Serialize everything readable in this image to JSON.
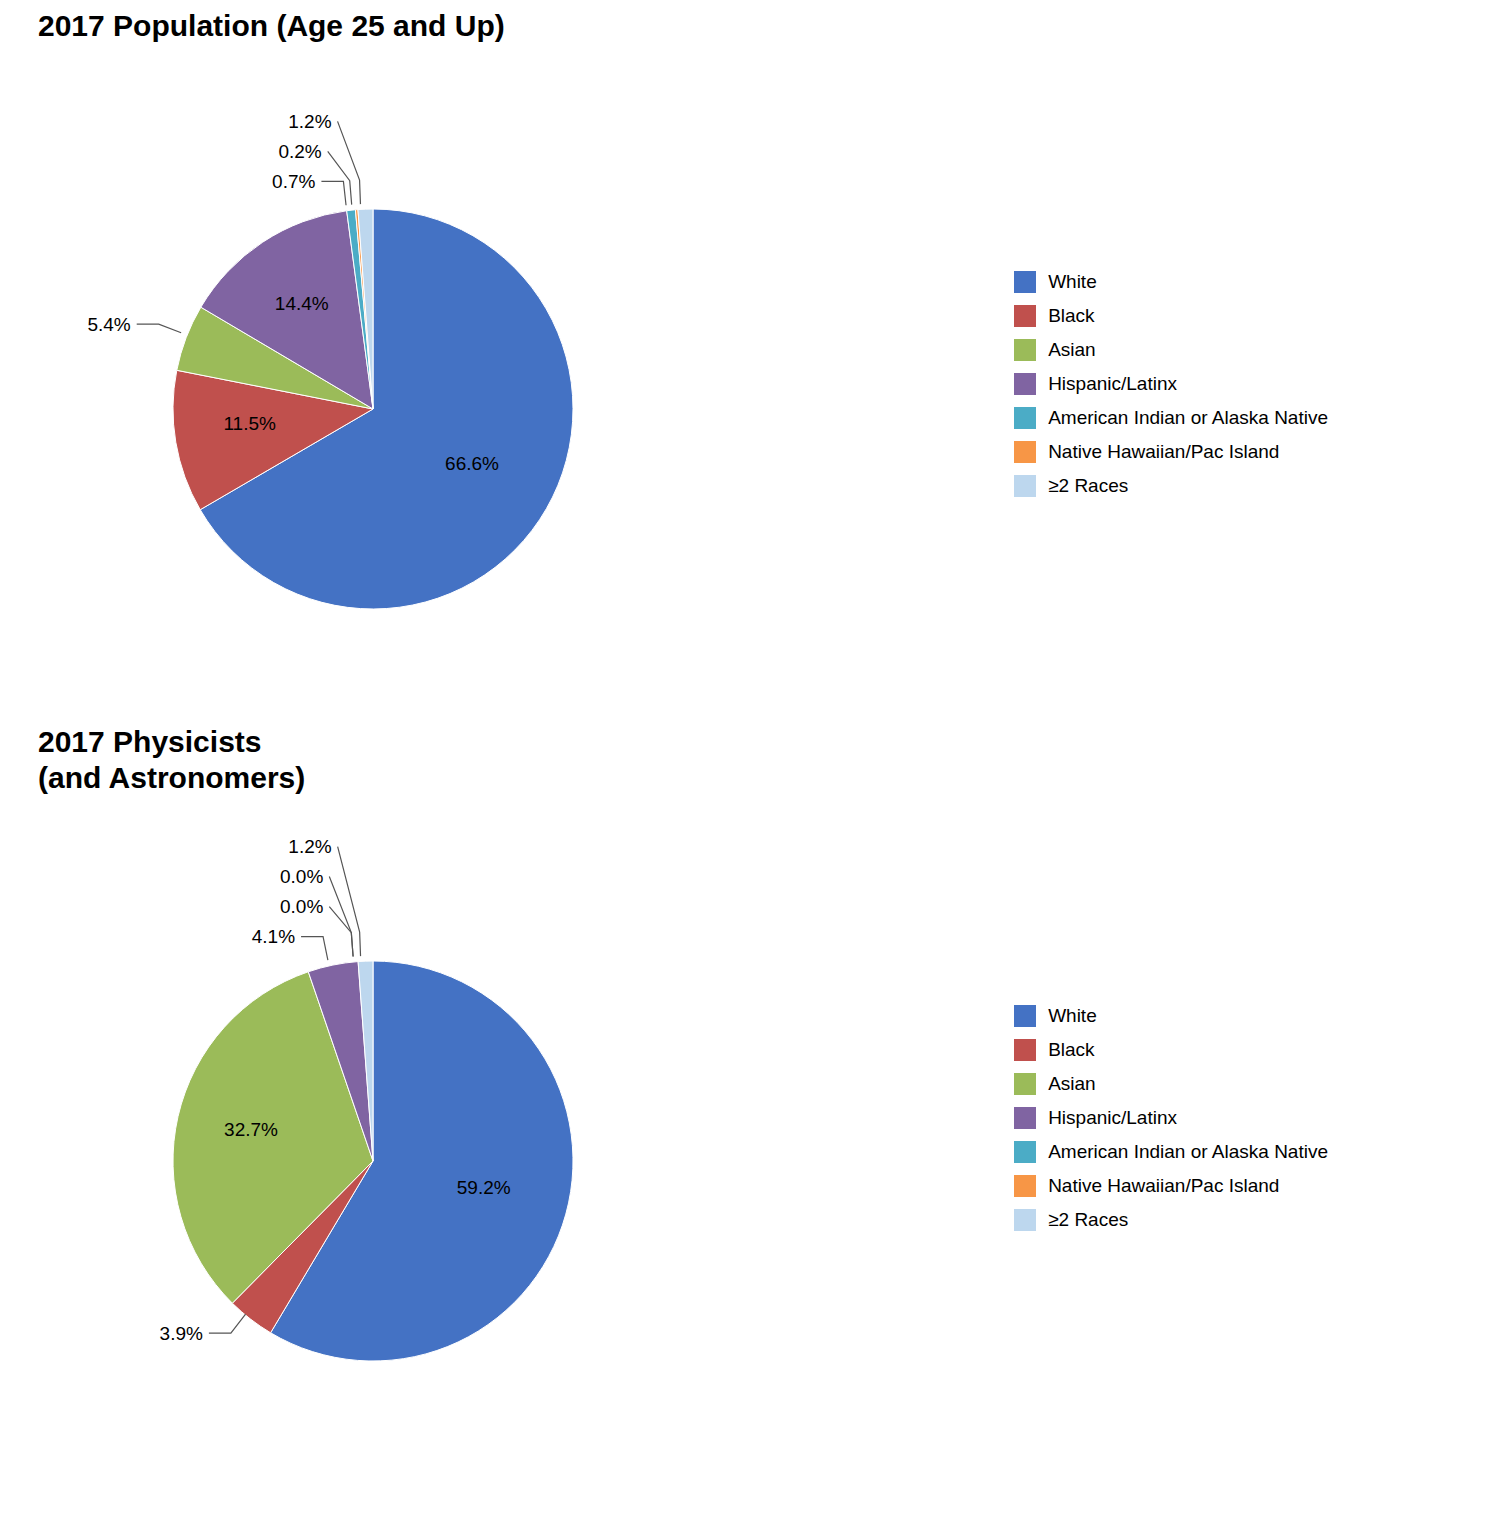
{
  "chart_data": [
    {
      "type": "pie",
      "title": "2017 Population (Age 25 and Up)",
      "categories": [
        "White",
        "Black",
        "Asian",
        "Hispanic/Latinx",
        "American Indian or Alaska Native",
        "Native Hawaiian/Pac Island",
        "≥2 Races"
      ],
      "values": [
        66.6,
        11.5,
        5.4,
        14.4,
        0.7,
        0.2,
        1.2
      ],
      "value_labels": [
        "66.6%",
        "11.5%",
        "5.4%",
        "14.4%",
        "0.7%",
        "0.2%",
        "1.2%"
      ],
      "colors": [
        "#4472C4",
        "#C0504D",
        "#9BBB59",
        "#8064A2",
        "#4BACC6",
        "#F79646",
        "#BDD7EE"
      ],
      "data_labels": true,
      "legend": "right"
    },
    {
      "type": "pie",
      "title": "2017 Physicists",
      "subtitle": "(and Astronomers)",
      "categories": [
        "White",
        "Black",
        "Asian",
        "Hispanic/Latinx",
        "American Indian or Alaska Native",
        "Native Hawaiian/Pac Island",
        "≥2 Races"
      ],
      "values": [
        59.2,
        3.9,
        32.7,
        4.1,
        0.0,
        0.0,
        1.2
      ],
      "value_labels": [
        "59.2%",
        "3.9%",
        "32.7%",
        "4.1%",
        "0.0%",
        "0.0%",
        "1.2%"
      ],
      "colors": [
        "#4472C4",
        "#C0504D",
        "#9BBB59",
        "#8064A2",
        "#4BACC6",
        "#F79646",
        "#BDD7EE"
      ],
      "data_labels": true,
      "legend": "right"
    }
  ]
}
